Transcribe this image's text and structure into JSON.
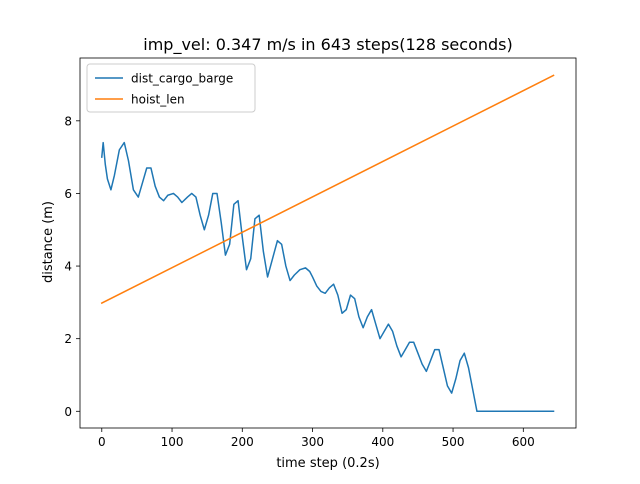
{
  "chart_data": {
    "type": "line",
    "title": "imp_vel: 0.347 m/s in 643 steps(128 seconds)",
    "xlabel": "time step (0.2s)",
    "ylabel": "distance (m)",
    "xlim": [
      -31,
      675
    ],
    "ylim": [
      -0.46,
      9.73
    ],
    "xticks": [
      0,
      100,
      200,
      300,
      400,
      500,
      600
    ],
    "yticks": [
      0,
      2,
      4,
      6,
      8
    ],
    "grid": false,
    "legend_position": "upper left",
    "series": [
      {
        "name": "dist_cargo_barge",
        "color": "#1f77b4",
        "x": [
          0,
          2,
          5,
          8,
          13,
          18,
          25,
          32,
          38,
          45,
          52,
          58,
          64,
          70,
          76,
          82,
          88,
          94,
          102,
          108,
          114,
          122,
          128,
          134,
          140,
          146,
          152,
          158,
          164,
          170,
          176,
          182,
          188,
          194,
          200,
          206,
          212,
          218,
          224,
          230,
          236,
          243,
          250,
          256,
          262,
          268,
          274,
          282,
          290,
          296,
          300,
          306,
          312,
          318,
          324,
          330,
          336,
          342,
          348,
          354,
          360,
          366,
          372,
          378,
          384,
          390,
          396,
          402,
          408,
          414,
          420,
          426,
          432,
          438,
          444,
          450,
          456,
          462,
          468,
          474,
          480,
          486,
          492,
          498,
          504,
          510,
          516,
          522,
          528,
          534,
          540,
          546,
          552,
          558,
          564,
          570,
          576,
          582,
          588,
          594,
          600,
          606,
          612,
          618,
          624,
          630,
          636,
          643
        ],
        "y": [
          7.0,
          7.4,
          6.8,
          6.4,
          6.1,
          6.5,
          7.2,
          7.4,
          6.9,
          6.1,
          5.9,
          6.3,
          6.7,
          6.7,
          6.2,
          5.9,
          5.8,
          5.95,
          6.0,
          5.9,
          5.75,
          5.9,
          6.0,
          5.9,
          5.4,
          5.0,
          5.4,
          6.0,
          6.0,
          5.2,
          4.3,
          4.6,
          5.7,
          5.8,
          4.8,
          3.9,
          4.2,
          5.3,
          5.4,
          4.4,
          3.7,
          4.2,
          4.7,
          4.6,
          4.0,
          3.6,
          3.75,
          3.9,
          3.95,
          3.85,
          3.7,
          3.45,
          3.3,
          3.25,
          3.4,
          3.5,
          3.2,
          2.7,
          2.8,
          3.2,
          3.1,
          2.6,
          2.3,
          2.6,
          2.8,
          2.4,
          2.0,
          2.2,
          2.4,
          2.2,
          1.8,
          1.5,
          1.7,
          1.9,
          1.9,
          1.6,
          1.3,
          1.1,
          1.4,
          1.7,
          1.7,
          1.2,
          0.7,
          0.5,
          0.9,
          1.4,
          1.6,
          1.2,
          0.6,
          0.0,
          0,
          0,
          0,
          0,
          0,
          0,
          0,
          0,
          0,
          0,
          0,
          0,
          0,
          0,
          0,
          0,
          0,
          0
        ]
      },
      {
        "name": "hoist_len",
        "color": "#ff7f0e",
        "x": [
          0,
          643
        ],
        "y": [
          2.98,
          9.25
        ]
      }
    ]
  }
}
